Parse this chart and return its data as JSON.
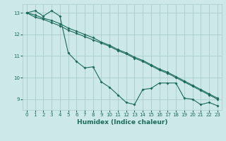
{
  "xlabel": "Humidex (Indice chaleur)",
  "ylabel": "",
  "bg_color": "#cce8e8",
  "grid_color": "#aacccc",
  "line_color": "#1a6b5a",
  "xlim": [
    -0.5,
    23.5
  ],
  "ylim": [
    8.5,
    13.4
  ],
  "yticks": [
    9,
    10,
    11,
    12,
    13
  ],
  "xticks": [
    0,
    1,
    2,
    3,
    4,
    5,
    6,
    7,
    8,
    9,
    10,
    11,
    12,
    13,
    14,
    15,
    16,
    17,
    18,
    19,
    20,
    21,
    22,
    23
  ],
  "line1_x": [
    0,
    1,
    2,
    3,
    4,
    5,
    6,
    7,
    8,
    9,
    10,
    11,
    12,
    13,
    14,
    15,
    16,
    17,
    18,
    19,
    20,
    21,
    22,
    23
  ],
  "line1_y": [
    13.0,
    13.1,
    12.85,
    13.1,
    12.85,
    11.15,
    10.75,
    10.45,
    10.5,
    9.8,
    9.55,
    9.2,
    8.85,
    8.75,
    9.45,
    9.5,
    9.75,
    9.75,
    9.75,
    9.05,
    9.0,
    8.75,
    8.85,
    8.7
  ],
  "line2_x": [
    0,
    1,
    2,
    3,
    4,
    5,
    6,
    7,
    8,
    9,
    10,
    11,
    12,
    13,
    14,
    15,
    16,
    17,
    18,
    19,
    20,
    21,
    22,
    23
  ],
  "line2_y": [
    13.0,
    12.8,
    12.7,
    12.55,
    12.4,
    12.2,
    12.05,
    11.9,
    11.75,
    11.6,
    11.45,
    11.25,
    11.1,
    10.9,
    10.75,
    10.55,
    10.35,
    10.2,
    10.0,
    9.8,
    9.6,
    9.4,
    9.2,
    9.0
  ],
  "line3_x": [
    0,
    1,
    2,
    3,
    4,
    5,
    6,
    7,
    8,
    9,
    10,
    11,
    12,
    13,
    14,
    15,
    16,
    17,
    18,
    19,
    20,
    21,
    22,
    23
  ],
  "line3_y": [
    13.0,
    12.9,
    12.75,
    12.65,
    12.5,
    12.3,
    12.15,
    12.0,
    11.85,
    11.65,
    11.5,
    11.3,
    11.15,
    10.95,
    10.8,
    10.6,
    10.4,
    10.25,
    10.05,
    9.85,
    9.65,
    9.45,
    9.25,
    9.05
  ]
}
